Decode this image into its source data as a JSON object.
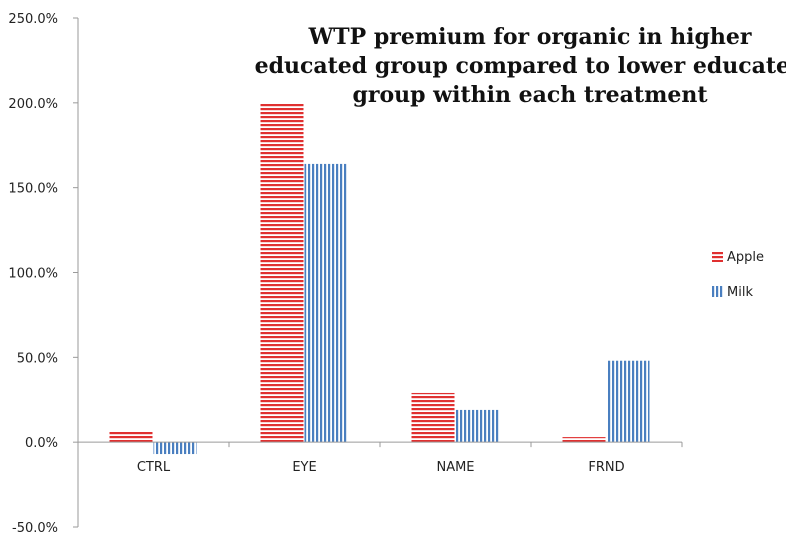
{
  "chart_data": {
    "type": "bar",
    "title_lines": [
      "WTP premium for organic in higher",
      "educated group compared to lower educated",
      "group within each treatment"
    ],
    "categories": [
      "CTRL",
      "EYE",
      "NAME",
      "FRND"
    ],
    "series": [
      {
        "name": "Apple",
        "values": [
          0.06,
          2.0,
          0.29,
          0.03
        ],
        "color": "#e03030",
        "pattern": "horizontal-stripes"
      },
      {
        "name": "Milk",
        "values": [
          -0.07,
          1.64,
          0.19,
          0.48
        ],
        "color": "#4a7fc0",
        "pattern": "vertical-stripes"
      }
    ],
    "ylim": [
      -0.5,
      2.5
    ],
    "yticks": [
      -0.5,
      0.0,
      0.5,
      1.0,
      1.5,
      2.0,
      2.5
    ],
    "ytick_labels": [
      "-50.0%",
      "0.0%",
      "50.0%",
      "100.0%",
      "150.0%",
      "200.0%",
      "250.0%"
    ],
    "grid": false,
    "legend_position": "right"
  }
}
